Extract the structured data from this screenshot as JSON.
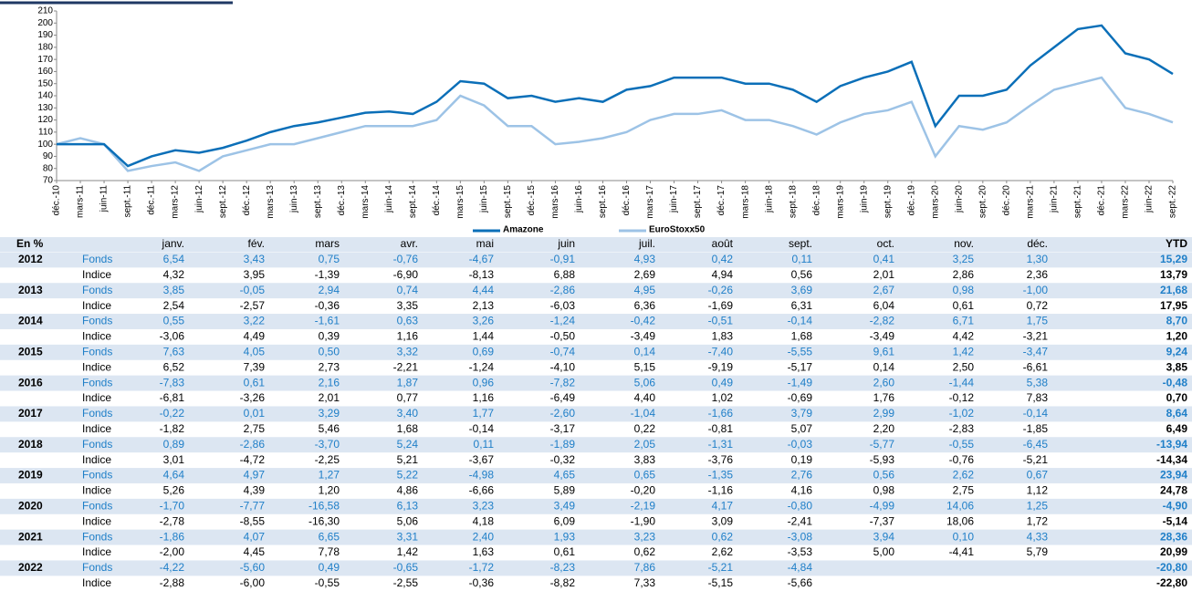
{
  "chart_data": {
    "type": "line",
    "x": [
      "déc.-10",
      "mars-11",
      "juin-11",
      "sept.-11",
      "déc.-11",
      "mars-12",
      "juin-12",
      "sept.-12",
      "déc.-12",
      "mars-13",
      "juin-13",
      "sept.-13",
      "déc.-13",
      "mars-14",
      "juin-14",
      "sept.-14",
      "déc.-14",
      "mars-15",
      "juin-15",
      "sept.-15",
      "déc.-15",
      "mars-16",
      "juin-16",
      "sept.-16",
      "déc.-16",
      "mars-17",
      "juin-17",
      "sept.-17",
      "déc.-17",
      "mars-18",
      "juin-18",
      "sept.-18",
      "déc.-18",
      "mars-19",
      "juin-19",
      "sept.-19",
      "déc.-19",
      "mars-20",
      "juin-20",
      "sept.-20",
      "déc.-20",
      "mars-21",
      "juin-21",
      "sept.-21",
      "déc.-21",
      "mars-22",
      "juin-22",
      "sept.-22"
    ],
    "series": [
      {
        "name": "Amazone",
        "color": "#0b6fb8",
        "values": [
          100,
          100,
          100,
          82,
          90,
          95,
          93,
          97,
          103,
          110,
          115,
          118,
          122,
          126,
          127,
          125,
          135,
          152,
          150,
          138,
          140,
          135,
          138,
          135,
          145,
          148,
          155,
          155,
          155,
          150,
          150,
          145,
          135,
          148,
          155,
          160,
          168,
          115,
          140,
          140,
          145,
          165,
          180,
          195,
          198,
          175,
          170,
          158
        ]
      },
      {
        "name": "EuroStoxx50",
        "color": "#9dc3e6",
        "values": [
          100,
          105,
          100,
          78,
          82,
          85,
          78,
          90,
          95,
          100,
          100,
          105,
          110,
          115,
          115,
          115,
          120,
          140,
          132,
          115,
          115,
          100,
          102,
          105,
          110,
          120,
          125,
          125,
          128,
          120,
          120,
          115,
          108,
          118,
          125,
          128,
          135,
          90,
          115,
          112,
          118,
          132,
          145,
          150,
          155,
          130,
          125,
          118
        ]
      }
    ],
    "ylim": [
      70,
      210
    ],
    "yticks": [
      70,
      80,
      90,
      100,
      110,
      120,
      130,
      140,
      150,
      160,
      170,
      180,
      190,
      200,
      210
    ]
  },
  "table": {
    "header": [
      "En %",
      "janv.",
      "fév.",
      "mars",
      "avr.",
      "mai",
      "juin",
      "juil.",
      "août",
      "sept.",
      "oct.",
      "nov.",
      "déc.",
      "YTD"
    ],
    "years": [
      {
        "year": "2012",
        "rows": [
          {
            "label": "Fonds",
            "values": [
              "6,54",
              "3,43",
              "0,75",
              "-0,76",
              "-4,67",
              "-0,91",
              "4,93",
              "0,42",
              "0,11",
              "0,41",
              "3,25",
              "1,30"
            ],
            "ytd": "15,29"
          },
          {
            "label": "Indice",
            "values": [
              "4,32",
              "3,95",
              "-1,39",
              "-6,90",
              "-8,13",
              "6,88",
              "2,69",
              "4,94",
              "0,56",
              "2,01",
              "2,86",
              "2,36"
            ],
            "ytd": "13,79"
          }
        ]
      },
      {
        "year": "2013",
        "rows": [
          {
            "label": "Fonds",
            "values": [
              "3,85",
              "-0,05",
              "2,94",
              "0,74",
              "4,44",
              "-2,86",
              "4,95",
              "-0,26",
              "3,69",
              "2,67",
              "0,98",
              "-1,00"
            ],
            "ytd": "21,68"
          },
          {
            "label": "Indice",
            "values": [
              "2,54",
              "-2,57",
              "-0,36",
              "3,35",
              "2,13",
              "-6,03",
              "6,36",
              "-1,69",
              "6,31",
              "6,04",
              "0,61",
              "0,72"
            ],
            "ytd": "17,95"
          }
        ]
      },
      {
        "year": "2014",
        "rows": [
          {
            "label": "Fonds",
            "values": [
              "0,55",
              "3,22",
              "-1,61",
              "0,63",
              "3,26",
              "-1,24",
              "-0,42",
              "-0,51",
              "-0,14",
              "-2,82",
              "6,71",
              "1,75"
            ],
            "ytd": "8,70"
          },
          {
            "label": "Indice",
            "values": [
              "-3,06",
              "4,49",
              "0,39",
              "1,16",
              "1,44",
              "-0,50",
              "-3,49",
              "1,83",
              "1,68",
              "-3,49",
              "4,42",
              "-3,21"
            ],
            "ytd": "1,20"
          }
        ]
      },
      {
        "year": "2015",
        "rows": [
          {
            "label": "Fonds",
            "values": [
              "7,63",
              "4,05",
              "0,50",
              "3,32",
              "0,69",
              "-0,74",
              "0,14",
              "-7,40",
              "-5,55",
              "9,61",
              "1,42",
              "-3,47"
            ],
            "ytd": "9,24"
          },
          {
            "label": "Indice",
            "values": [
              "6,52",
              "7,39",
              "2,73",
              "-2,21",
              "-1,24",
              "-4,10",
              "5,15",
              "-9,19",
              "-5,17",
              "0,14",
              "2,50",
              "-6,61"
            ],
            "ytd": "3,85"
          }
        ]
      },
      {
        "year": "2016",
        "rows": [
          {
            "label": "Fonds",
            "values": [
              "-7,83",
              "0,61",
              "2,16",
              "1,87",
              "0,96",
              "-7,82",
              "5,06",
              "0,49",
              "-1,49",
              "2,60",
              "-1,44",
              "5,38"
            ],
            "ytd": "-0,48"
          },
          {
            "label": "Indice",
            "values": [
              "-6,81",
              "-3,26",
              "2,01",
              "0,77",
              "1,16",
              "-6,49",
              "4,40",
              "1,02",
              "-0,69",
              "1,76",
              "-0,12",
              "7,83"
            ],
            "ytd": "0,70"
          }
        ]
      },
      {
        "year": "2017",
        "rows": [
          {
            "label": "Fonds",
            "values": [
              "-0,22",
              "0,01",
              "3,29",
              "3,40",
              "1,77",
              "-2,60",
              "-1,04",
              "-1,66",
              "3,79",
              "2,99",
              "-1,02",
              "-0,14"
            ],
            "ytd": "8,64"
          },
          {
            "label": "Indice",
            "values": [
              "-1,82",
              "2,75",
              "5,46",
              "1,68",
              "-0,14",
              "-3,17",
              "0,22",
              "-0,81",
              "5,07",
              "2,20",
              "-2,83",
              "-1,85"
            ],
            "ytd": "6,49"
          }
        ]
      },
      {
        "year": "2018",
        "rows": [
          {
            "label": "Fonds",
            "values": [
              "0,89",
              "-2,86",
              "-3,70",
              "5,24",
              "0,11",
              "-1,89",
              "2,05",
              "-1,31",
              "-0,03",
              "-5,77",
              "-0,55",
              "-6,45"
            ],
            "ytd": "-13,94"
          },
          {
            "label": "Indice",
            "values": [
              "3,01",
              "-4,72",
              "-2,25",
              "5,21",
              "-3,67",
              "-0,32",
              "3,83",
              "-3,76",
              "0,19",
              "-5,93",
              "-0,76",
              "-5,21"
            ],
            "ytd": "-14,34"
          }
        ]
      },
      {
        "year": "2019",
        "rows": [
          {
            "label": "Fonds",
            "values": [
              "4,64",
              "4,97",
              "1,27",
              "5,22",
              "-4,98",
              "4,65",
              "0,65",
              "-1,35",
              "2,76",
              "0,56",
              "2,62",
              "0,67"
            ],
            "ytd": "23,94"
          },
          {
            "label": "Indice",
            "values": [
              "5,26",
              "4,39",
              "1,20",
              "4,86",
              "-6,66",
              "5,89",
              "-0,20",
              "-1,16",
              "4,16",
              "0,98",
              "2,75",
              "1,12"
            ],
            "ytd": "24,78"
          }
        ]
      },
      {
        "year": "2020",
        "rows": [
          {
            "label": "Fonds",
            "values": [
              "-1,70",
              "-7,77",
              "-16,58",
              "6,13",
              "3,23",
              "3,49",
              "-2,19",
              "4,17",
              "-0,80",
              "-4,99",
              "14,06",
              "1,25"
            ],
            "ytd": "-4,90"
          },
          {
            "label": "Indice",
            "values": [
              "-2,78",
              "-8,55",
              "-16,30",
              "5,06",
              "4,18",
              "6,09",
              "-1,90",
              "3,09",
              "-2,41",
              "-7,37",
              "18,06",
              "1,72"
            ],
            "ytd": "-5,14"
          }
        ]
      },
      {
        "year": "2021",
        "rows": [
          {
            "label": "Fonds",
            "values": [
              "-1,86",
              "4,07",
              "6,65",
              "3,31",
              "2,40",
              "1,93",
              "3,23",
              "0,62",
              "-3,08",
              "3,94",
              "0,10",
              "4,33"
            ],
            "ytd": "28,36"
          },
          {
            "label": "Indice",
            "values": [
              "-2,00",
              "4,45",
              "7,78",
              "1,42",
              "1,63",
              "0,61",
              "0,62",
              "2,62",
              "-3,53",
              "5,00",
              "-4,41",
              "5,79"
            ],
            "ytd": "20,99"
          }
        ]
      },
      {
        "year": "2022",
        "rows": [
          {
            "label": "Fonds",
            "values": [
              "-4,22",
              "-5,60",
              "0,49",
              "-0,65",
              "-1,72",
              "-8,23",
              "7,86",
              "-5,21",
              "-4,84",
              null,
              null,
              null
            ],
            "ytd": "-20,80"
          },
          {
            "label": "Indice",
            "values": [
              "-2,88",
              "-6,00",
              "-0,55",
              "-2,55",
              "-0,36",
              "-8,82",
              "7,33",
              "-5,15",
              "-5,66",
              null,
              null,
              null
            ],
            "ytd": "-22,80"
          }
        ]
      }
    ]
  }
}
